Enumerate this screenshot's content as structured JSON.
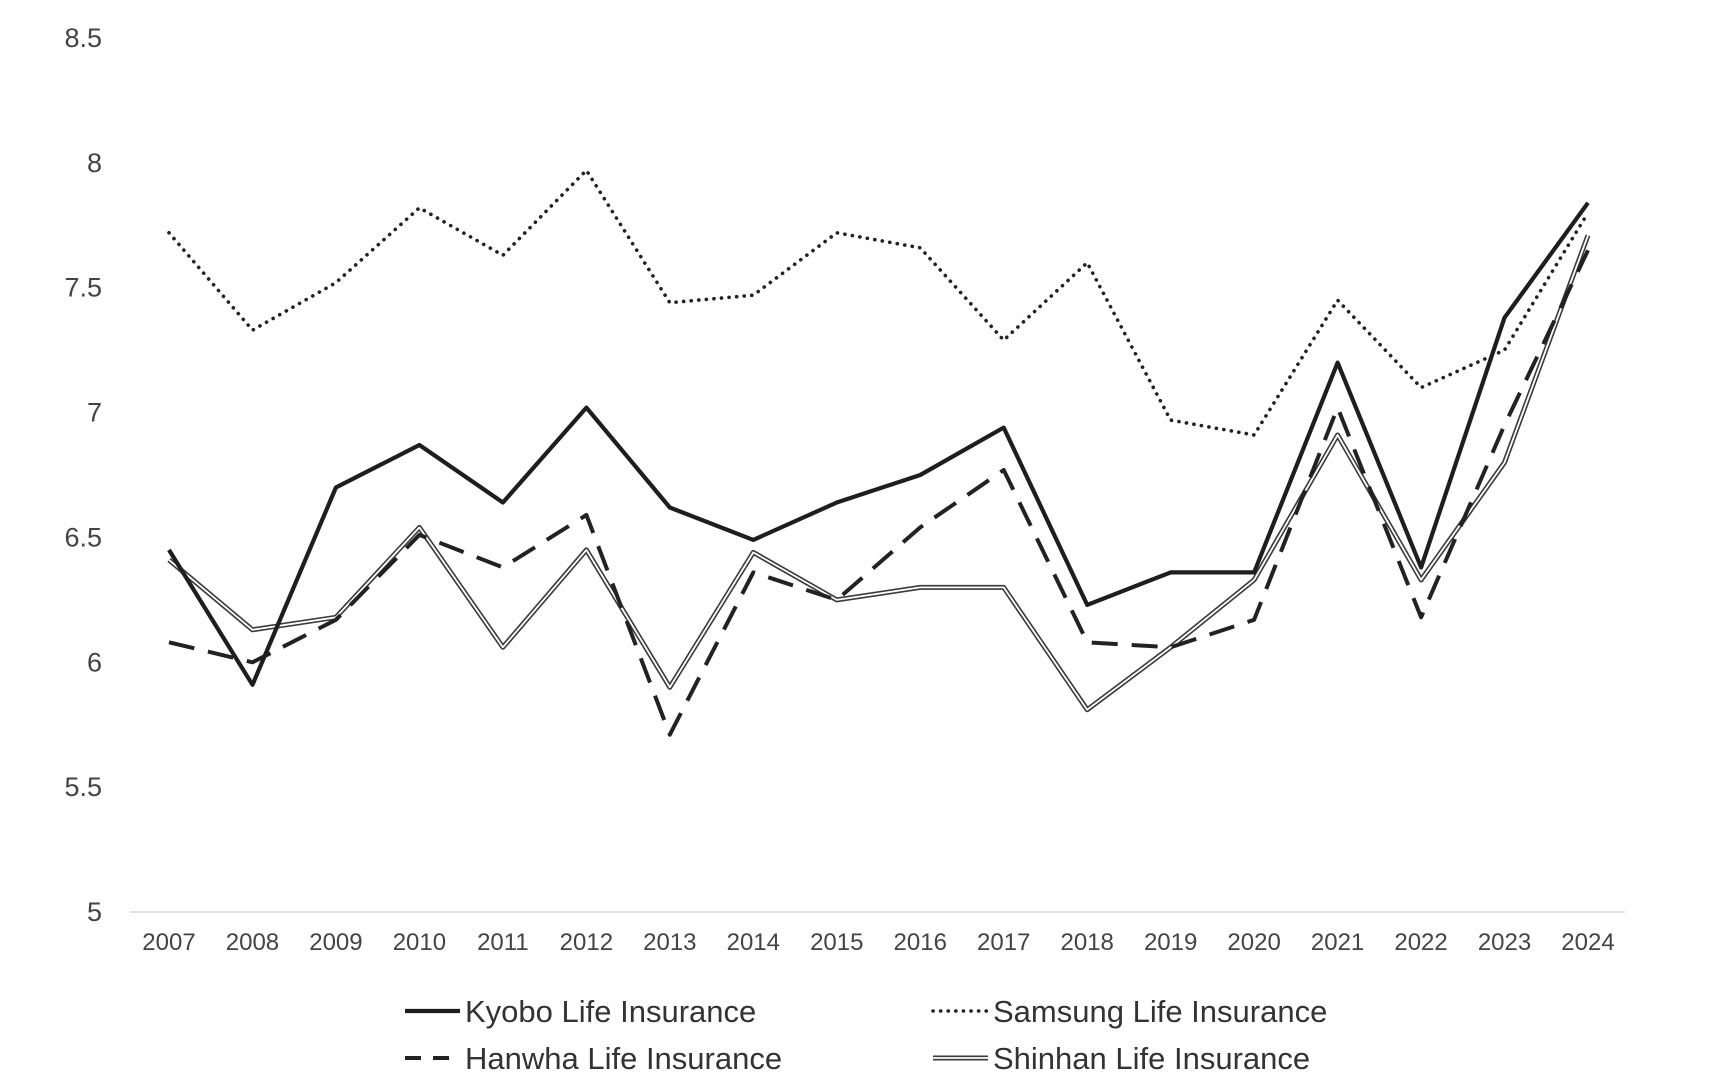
{
  "chart_data": {
    "type": "line",
    "title": "",
    "xlabel": "",
    "ylabel": "",
    "ylim": [
      5,
      8.5
    ],
    "yticks": [
      "5",
      "5.5",
      "6",
      "6.5",
      "7",
      "7.5",
      "8",
      "8.5"
    ],
    "categories": [
      "2007",
      "2008",
      "2009",
      "2010",
      "2011",
      "2012",
      "2013",
      "2014",
      "2015",
      "2016",
      "2017",
      "2018",
      "2019",
      "2020",
      "2021",
      "2022",
      "2023",
      "2024"
    ],
    "grid": false,
    "legend_position": "bottom",
    "series": [
      {
        "name": "Kyobo Life Insurance",
        "style": "solid-thick",
        "values": [
          6.45,
          5.91,
          6.7,
          6.87,
          6.64,
          7.02,
          6.62,
          6.49,
          6.64,
          6.75,
          6.94,
          6.23,
          6.36,
          6.36,
          7.2,
          6.38,
          7.38,
          7.84
        ]
      },
      {
        "name": "Samsung Life Insurance",
        "style": "dotted",
        "values": [
          7.72,
          7.33,
          7.52,
          7.82,
          7.63,
          7.97,
          7.44,
          7.47,
          7.72,
          7.66,
          7.29,
          7.6,
          6.97,
          6.91,
          7.45,
          7.1,
          7.25,
          7.8
        ]
      },
      {
        "name": "Hanwha Life Insurance",
        "style": "dashed",
        "values": [
          6.08,
          6.0,
          6.17,
          6.51,
          6.38,
          6.59,
          5.71,
          6.36,
          6.25,
          6.54,
          6.77,
          6.08,
          6.06,
          6.17,
          7.02,
          6.18,
          6.95,
          7.65
        ]
      },
      {
        "name": "Shinhan Life Insurance",
        "style": "double",
        "values": [
          6.41,
          6.13,
          6.18,
          6.54,
          6.06,
          6.45,
          5.9,
          6.44,
          6.25,
          6.3,
          6.3,
          5.81,
          6.06,
          6.33,
          6.91,
          6.33,
          6.8,
          7.71
        ]
      }
    ]
  }
}
